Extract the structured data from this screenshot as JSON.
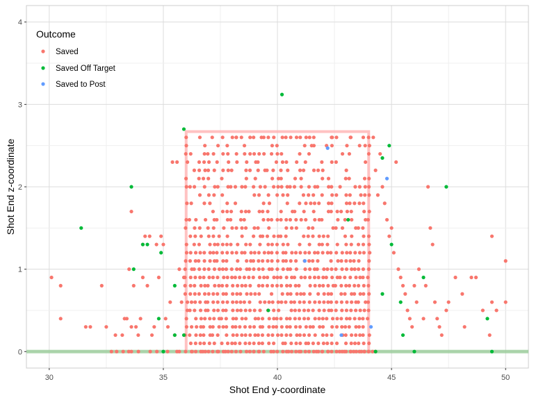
{
  "chart_data": {
    "type": "scatter",
    "xlabel": "Shot End y-coordinate",
    "ylabel": "Shot End z-coordinate",
    "xlim": [
      29,
      51
    ],
    "ylim": [
      -0.2,
      4.2
    ],
    "x_ticks": [
      30,
      35,
      40,
      45,
      50
    ],
    "x_tick_labels": [
      "30",
      "35",
      "40",
      "45",
      "50"
    ],
    "y_ticks": [
      0,
      1,
      2,
      3,
      4
    ],
    "y_tick_labels": [
      "0",
      "1",
      "2",
      "3",
      "4"
    ],
    "grid": true,
    "legend": {
      "title": "Outcome",
      "placement": "top-left"
    },
    "reference_shapes": {
      "goal_frame": {
        "x0": 36,
        "x1": 44,
        "y0": 0,
        "y1": 2.67,
        "color": "#ffb3b3"
      },
      "ground_line": {
        "y": 0,
        "color": "#99cc99"
      }
    },
    "series": [
      {
        "name": "Saved",
        "color": "#F8766D",
        "dense_region": {
          "x": [
            36,
            44
          ],
          "y": [
            0,
            2.6
          ]
        },
        "points": [
          [
            30.1,
            0.9
          ],
          [
            30.5,
            0.8
          ],
          [
            30.5,
            0.4
          ],
          [
            31.6,
            0.3
          ],
          [
            31.8,
            0.3
          ],
          [
            32.3,
            0.8
          ],
          [
            32.5,
            0.3
          ],
          [
            32.9,
            0.2
          ],
          [
            33.2,
            0.2
          ],
          [
            33.3,
            0.4
          ],
          [
            33.4,
            0.4
          ],
          [
            33.5,
            1.0
          ],
          [
            33.6,
            1.7
          ],
          [
            33.6,
            0.3
          ],
          [
            33.6,
            0.0
          ],
          [
            33.7,
            0.8
          ],
          [
            33.8,
            0.3
          ],
          [
            33.9,
            0.2
          ],
          [
            34.0,
            0.4
          ],
          [
            34.1,
            1.3
          ],
          [
            34.1,
            0.9
          ],
          [
            34.2,
            1.4
          ],
          [
            34.3,
            0.8
          ],
          [
            34.4,
            1.4
          ],
          [
            34.5,
            0.2
          ],
          [
            34.6,
            0.3
          ],
          [
            34.7,
            1.3
          ],
          [
            34.8,
            0.9
          ],
          [
            34.9,
            1.4
          ],
          [
            35.0,
            1.3
          ],
          [
            35.1,
            0.4
          ],
          [
            35.2,
            0.3
          ],
          [
            35.3,
            0.6
          ],
          [
            35.4,
            2.3
          ],
          [
            35.5,
            0.2
          ],
          [
            35.6,
            2.3
          ],
          [
            35.7,
            1.0
          ],
          [
            35.8,
            0.6
          ],
          [
            35.9,
            0.9
          ],
          [
            44.2,
            2.6
          ],
          [
            44.3,
            2.2
          ],
          [
            44.4,
            1.9
          ],
          [
            44.5,
            2.4
          ],
          [
            44.6,
            2.0
          ],
          [
            44.7,
            1.8
          ],
          [
            44.8,
            1.6
          ],
          [
            44.9,
            1.4
          ],
          [
            45.0,
            1.5
          ],
          [
            45.1,
            1.2
          ],
          [
            45.2,
            2.3
          ],
          [
            45.3,
            1.0
          ],
          [
            45.4,
            0.9
          ],
          [
            45.5,
            0.8
          ],
          [
            45.6,
            0.7
          ],
          [
            45.7,
            0.5
          ],
          [
            45.8,
            0.4
          ],
          [
            45.9,
            0.3
          ],
          [
            46.0,
            0.8
          ],
          [
            46.1,
            0.6
          ],
          [
            46.2,
            1.0
          ],
          [
            46.4,
            0.4
          ],
          [
            46.5,
            0.8
          ],
          [
            46.6,
            2.0
          ],
          [
            46.7,
            1.5
          ],
          [
            46.8,
            1.3
          ],
          [
            46.9,
            0.6
          ],
          [
            47.0,
            0.4
          ],
          [
            47.1,
            0.3
          ],
          [
            47.2,
            0.2
          ],
          [
            47.4,
            0.5
          ],
          [
            47.5,
            0.6
          ],
          [
            47.8,
            0.9
          ],
          [
            48.1,
            0.7
          ],
          [
            48.2,
            0.3
          ],
          [
            48.5,
            0.9
          ],
          [
            48.7,
            0.9
          ],
          [
            49.0,
            0.5
          ],
          [
            49.3,
            0.2
          ],
          [
            49.4,
            1.4
          ],
          [
            49.4,
            0.6
          ],
          [
            49.6,
            0.5
          ],
          [
            50.0,
            0.6
          ],
          [
            50.0,
            1.1
          ],
          [
            36.6,
            2.6
          ],
          [
            38.2,
            2.6
          ],
          [
            39.3,
            2.6
          ],
          [
            41.0,
            2.6
          ],
          [
            42.4,
            2.6
          ],
          [
            43.2,
            2.6
          ],
          [
            35.6,
            0.0
          ],
          [
            43.8,
            0.0
          ],
          [
            44.3,
            0.0
          ],
          [
            41.5,
            2.5
          ],
          [
            37.8,
            2.5
          ]
        ]
      },
      {
        "name": "Saved Off Target",
        "color": "#00BA38",
        "points": [
          [
            31.4,
            1.5
          ],
          [
            33.6,
            2.0
          ],
          [
            33.7,
            1.0
          ],
          [
            34.1,
            1.3
          ],
          [
            34.3,
            1.3
          ],
          [
            34.8,
            0.4
          ],
          [
            34.9,
            1.2
          ],
          [
            35.0,
            0.0
          ],
          [
            35.5,
            0.8
          ],
          [
            35.5,
            0.2
          ],
          [
            35.9,
            0.2
          ],
          [
            35.9,
            2.7
          ],
          [
            39.6,
            0.5
          ],
          [
            40.2,
            3.12
          ],
          [
            43.1,
            1.6
          ],
          [
            44.3,
            0.0
          ],
          [
            44.6,
            2.35
          ],
          [
            44.6,
            0.7
          ],
          [
            44.9,
            2.5
          ],
          [
            45.0,
            1.3
          ],
          [
            45.4,
            0.6
          ],
          [
            45.5,
            0.2
          ],
          [
            46.0,
            0.0
          ],
          [
            46.4,
            0.9
          ],
          [
            47.4,
            2.0
          ],
          [
            49.2,
            0.4
          ],
          [
            49.4,
            0.0
          ]
        ]
      },
      {
        "name": "Saved to Post",
        "color": "#619CFF",
        "points": [
          [
            41.2,
            1.1
          ],
          [
            42.2,
            2.47
          ],
          [
            42.8,
            0.2
          ],
          [
            44.1,
            0.3
          ],
          [
            44.8,
            2.1
          ]
        ]
      }
    ]
  }
}
